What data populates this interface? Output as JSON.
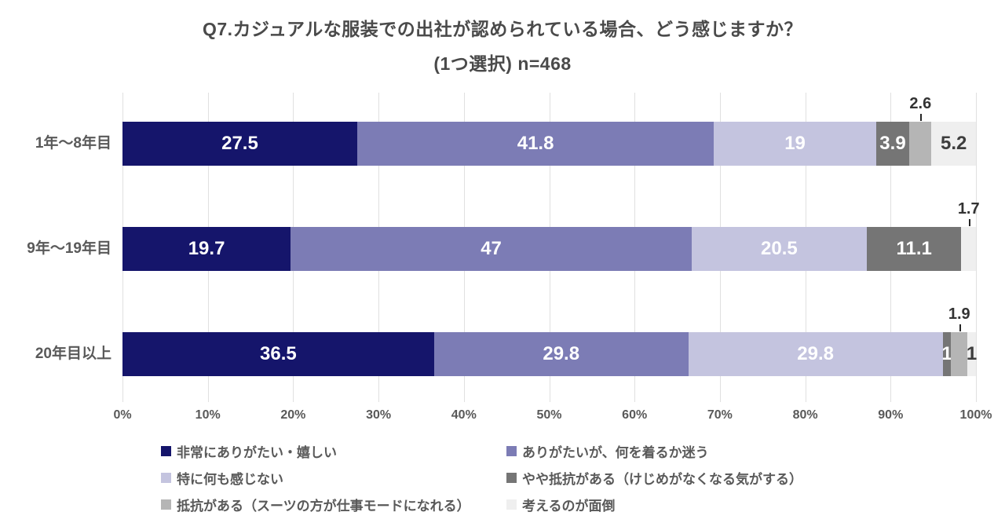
{
  "title": {
    "line1": "Q7.カジュアルな服装での出社が認められている場合、どう感じますか？",
    "line2": "(1つ選択) n=468"
  },
  "chart_data": {
    "type": "bar",
    "orientation": "horizontal",
    "stacked": true,
    "title": "Q7.カジュアルな服装での出社が認められている場合、どう感じますか？ (1つ選択) n=468",
    "categories": [
      "1年〜8年目",
      "9年〜19年目",
      "20年目以上"
    ],
    "series": [
      {
        "name": "非常にありがたい・嬉しい",
        "color": "#15156b",
        "values": [
          27.5,
          19.7,
          36.5
        ],
        "label_placement": [
          "inside",
          "inside",
          "inside"
        ],
        "label_color": "#ffffff"
      },
      {
        "name": "ありがたいが、何を着るか迷う",
        "color": "#7c7cb5",
        "values": [
          41.8,
          47,
          29.8
        ],
        "label_placement": [
          "inside",
          "inside",
          "inside"
        ],
        "label_color": "#ffffff"
      },
      {
        "name": "特に何も感じない",
        "color": "#c4c4df",
        "values": [
          19,
          20.5,
          29.8
        ],
        "label_placement": [
          "inside",
          "inside",
          "inside"
        ],
        "label_color": "#ffffff"
      },
      {
        "name": "やや抵抗がある（けじめがなくなる気がする）",
        "color": "#757575",
        "values": [
          3.9,
          11.1,
          1
        ],
        "label_placement": [
          "inside",
          "inside",
          "inside"
        ],
        "label_color": "#ffffff"
      },
      {
        "name": "抵抗がある（スーツの方が仕事モードになれる）",
        "color": "#b5b5b5",
        "values": [
          2.6,
          0,
          1.9
        ],
        "label_placement": [
          "above",
          "none",
          "above"
        ],
        "label_color": "#333333"
      },
      {
        "name": "考えるのが面倒",
        "color": "#efefef",
        "values": [
          5.2,
          1.7,
          1
        ],
        "label_placement": [
          "inside",
          "above",
          "inside"
        ],
        "label_color": "#3d3d3d"
      }
    ],
    "x_ticks": [
      "0%",
      "10%",
      "20%",
      "30%",
      "40%",
      "50%",
      "60%",
      "70%",
      "80%",
      "90%",
      "100%"
    ],
    "xlim": [
      0,
      100
    ],
    "grid": "vertical",
    "legend_position": "bottom"
  }
}
